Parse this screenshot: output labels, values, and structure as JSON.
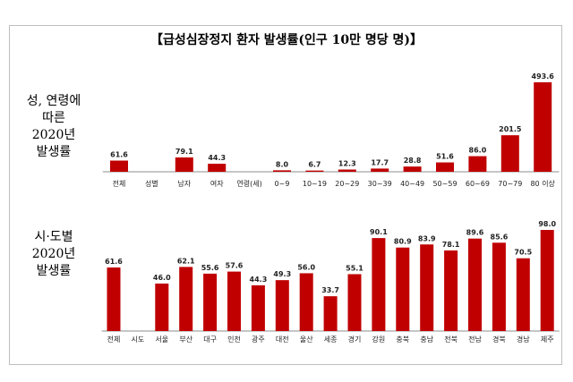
{
  "title": "【급성심장정지 환자 발생률(인구 10만 명당 명)】",
  "colors": {
    "bar": "#c00000",
    "axis": "#8c8c8c"
  },
  "chart_data": [
    {
      "type": "bar",
      "row_label_lines": [
        "성, 연령에",
        "따른",
        "2020년",
        "발생률"
      ],
      "categories": [
        "전체",
        "성별",
        "남자",
        "여자",
        "연령(세)",
        "0~9",
        "10~19",
        "20~29",
        "30~39",
        "40~49",
        "50~59",
        "60~69",
        "70~79",
        "80 이상"
      ],
      "values": [
        61.6,
        null,
        79.1,
        44.3,
        null,
        8.0,
        6.7,
        12.3,
        17.7,
        28.8,
        51.6,
        86.0,
        201.5,
        493.6
      ],
      "value_labels": [
        "61.6",
        "",
        "79.1",
        "44.3",
        "",
        "8.0",
        "6.7",
        "12.3",
        "17.7",
        "28.8",
        "51.6",
        "86.0",
        "201.5",
        "493.6"
      ],
      "ylim": [
        0,
        493.6
      ]
    },
    {
      "type": "bar",
      "row_label_lines": [
        "시·도별",
        "2020년",
        "발생률"
      ],
      "categories": [
        "전체",
        "시도",
        "서울",
        "부산",
        "대구",
        "인천",
        "광주",
        "대전",
        "울산",
        "세종",
        "경기",
        "강원",
        "충북",
        "충남",
        "전북",
        "전남",
        "경북",
        "경남",
        "제주"
      ],
      "values": [
        61.6,
        null,
        46.0,
        62.1,
        55.6,
        57.6,
        44.3,
        49.3,
        56.0,
        33.7,
        55.1,
        90.1,
        80.9,
        83.9,
        78.1,
        89.6,
        85.6,
        70.5,
        98.0
      ],
      "value_labels": [
        "61.6",
        "",
        "46.0",
        "62.1",
        "55.6",
        "57.6",
        "44.3",
        "49.3",
        "56.0",
        "33.7",
        "55.1",
        "90.1",
        "80.9",
        "83.9",
        "78.1",
        "89.6",
        "85.6",
        "70.5",
        "98.0"
      ],
      "ylim": [
        0,
        98.0
      ]
    }
  ]
}
